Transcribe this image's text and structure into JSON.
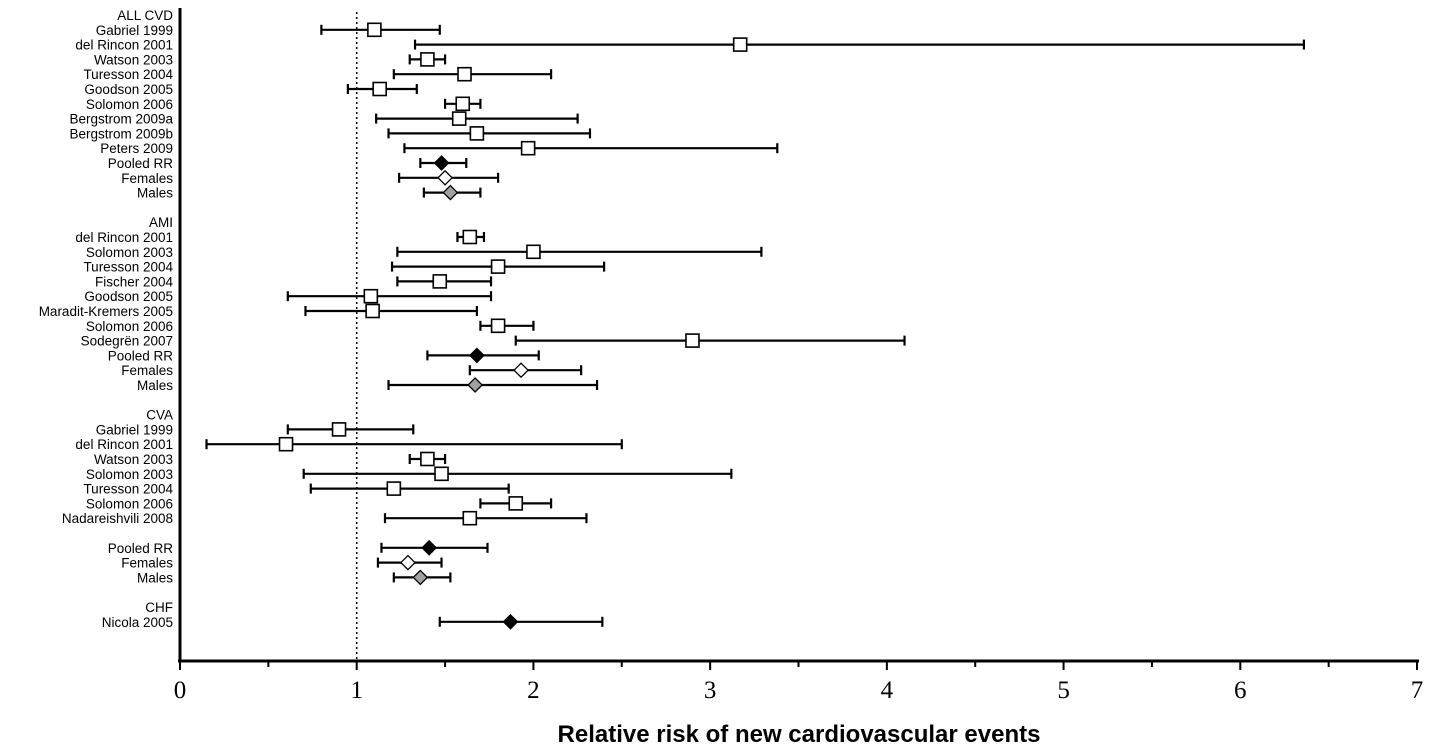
{
  "chart_data": {
    "type": "forest",
    "xlabel": "Relative risk of new cardiovascular events",
    "xlim": [
      0,
      7
    ],
    "xticks": [
      "0",
      "1",
      "2",
      "3",
      "4",
      "5",
      "6",
      "7"
    ],
    "reference_line": 1,
    "marker_colors": {
      "study": "#ffffff",
      "pooled": "#000000",
      "female": "#ffffff",
      "male": "#a0a0a0"
    },
    "rows": [
      {
        "label": "ALL CVD",
        "kind": "header"
      },
      {
        "label": "Gabriel 1999",
        "kind": "study",
        "rr": 1.1,
        "lo": 0.8,
        "hi": 1.47
      },
      {
        "label": "del Rincon 2001",
        "kind": "study",
        "rr": 3.17,
        "lo": 1.33,
        "hi": 6.36
      },
      {
        "label": "Watson 2003",
        "kind": "study",
        "rr": 1.4,
        "lo": 1.3,
        "hi": 1.5
      },
      {
        "label": "Turesson 2004",
        "kind": "study",
        "rr": 1.61,
        "lo": 1.21,
        "hi": 2.1
      },
      {
        "label": "Goodson 2005",
        "kind": "study",
        "rr": 1.13,
        "lo": 0.95,
        "hi": 1.34
      },
      {
        "label": "Solomon 2006",
        "kind": "study",
        "rr": 1.6,
        "lo": 1.5,
        "hi": 1.7
      },
      {
        "label": "Bergstrom 2009a",
        "kind": "study",
        "rr": 1.58,
        "lo": 1.11,
        "hi": 2.25
      },
      {
        "label": "Bergstrom 2009b",
        "kind": "study",
        "rr": 1.68,
        "lo": 1.18,
        "hi": 2.32
      },
      {
        "label": "Peters 2009",
        "kind": "study",
        "rr": 1.97,
        "lo": 1.27,
        "hi": 3.38
      },
      {
        "label": "Pooled RR",
        "kind": "pooled",
        "rr": 1.48,
        "lo": 1.36,
        "hi": 1.62
      },
      {
        "label": "Females",
        "kind": "female",
        "rr": 1.5,
        "lo": 1.24,
        "hi": 1.8
      },
      {
        "label": "Males",
        "kind": "male",
        "rr": 1.53,
        "lo": 1.38,
        "hi": 1.7
      },
      {
        "label": "",
        "kind": "blank"
      },
      {
        "label": "AMI",
        "kind": "header"
      },
      {
        "label": "del Rincon 2001",
        "kind": "study",
        "rr": 1.64,
        "lo": 1.57,
        "hi": 1.72
      },
      {
        "label": "Solomon 2003",
        "kind": "study",
        "rr": 2.0,
        "lo": 1.23,
        "hi": 3.29
      },
      {
        "label": "Turesson 2004",
        "kind": "study",
        "rr": 1.8,
        "lo": 1.2,
        "hi": 2.4
      },
      {
        "label": "Fischer 2004",
        "kind": "study",
        "rr": 1.47,
        "lo": 1.23,
        "hi": 1.76
      },
      {
        "label": "Goodson 2005",
        "kind": "study",
        "rr": 1.08,
        "lo": 0.61,
        "hi": 1.76
      },
      {
        "label": "Maradit-Kremers 2005",
        "kind": "study",
        "rr": 1.09,
        "lo": 0.71,
        "hi": 1.68
      },
      {
        "label": "Solomon 2006",
        "kind": "study",
        "rr": 1.8,
        "lo": 1.7,
        "hi": 2.0
      },
      {
        "label": "Sodegrën 2007",
        "kind": "study",
        "rr": 2.9,
        "lo": 1.9,
        "hi": 4.1
      },
      {
        "label": "Pooled RR",
        "kind": "pooled",
        "rr": 1.68,
        "lo": 1.4,
        "hi": 2.03
      },
      {
        "label": "Females",
        "kind": "female",
        "rr": 1.93,
        "lo": 1.64,
        "hi": 2.27
      },
      {
        "label": "Males",
        "kind": "male",
        "rr": 1.67,
        "lo": 1.18,
        "hi": 2.36
      },
      {
        "label": "",
        "kind": "blank"
      },
      {
        "label": "CVA",
        "kind": "header"
      },
      {
        "label": "Gabriel 1999",
        "kind": "study",
        "rr": 0.9,
        "lo": 0.61,
        "hi": 1.32
      },
      {
        "label": "del Rincon 2001",
        "kind": "study",
        "rr": 0.6,
        "lo": 0.15,
        "hi": 2.5
      },
      {
        "label": "Watson 2003",
        "kind": "study",
        "rr": 1.4,
        "lo": 1.3,
        "hi": 1.5
      },
      {
        "label": "Solomon 2003",
        "kind": "study",
        "rr": 1.48,
        "lo": 0.7,
        "hi": 3.12
      },
      {
        "label": "Turesson 2004",
        "kind": "study",
        "rr": 1.21,
        "lo": 0.74,
        "hi": 1.86
      },
      {
        "label": "Solomon 2006",
        "kind": "study",
        "rr": 1.9,
        "lo": 1.7,
        "hi": 2.1
      },
      {
        "label": "Nadareishvili 2008",
        "kind": "study",
        "rr": 1.64,
        "lo": 1.16,
        "hi": 2.3
      },
      {
        "label": "",
        "kind": "blank"
      },
      {
        "label": "Pooled RR",
        "kind": "pooled",
        "rr": 1.41,
        "lo": 1.14,
        "hi": 1.74
      },
      {
        "label": "Females",
        "kind": "female",
        "rr": 1.29,
        "lo": 1.12,
        "hi": 1.48
      },
      {
        "label": "Males",
        "kind": "male",
        "rr": 1.36,
        "lo": 1.21,
        "hi": 1.53
      },
      {
        "label": "",
        "kind": "blank"
      },
      {
        "label": "CHF",
        "kind": "header"
      },
      {
        "label": "Nicola 2005",
        "kind": "pooled",
        "rr": 1.87,
        "lo": 1.47,
        "hi": 2.39
      }
    ]
  }
}
